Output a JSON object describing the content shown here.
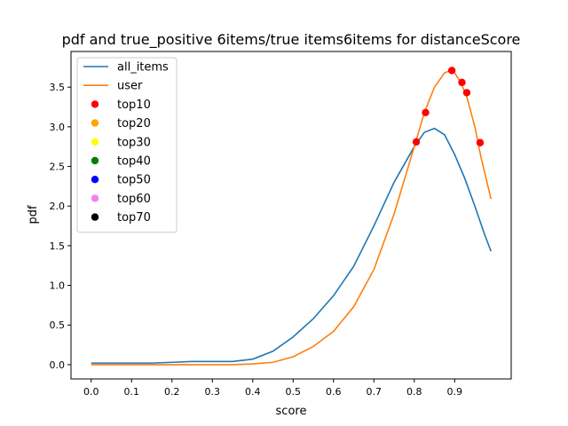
{
  "chart_data": {
    "type": "line",
    "title": "pdf and true_positive 6items/true items6items for distanceScore",
    "xlabel": "score",
    "ylabel": "pdf",
    "xlim": [
      -0.05,
      1.04
    ],
    "ylim": [
      -0.18,
      3.95
    ],
    "xticks": [
      0.0,
      0.1,
      0.2,
      0.3,
      0.4,
      0.5,
      0.6,
      0.7,
      0.8,
      0.9
    ],
    "xtick_labels": [
      "0.0",
      "0.1",
      "0.2",
      "0.3",
      "0.4",
      "0.5",
      "0.6",
      "0.7",
      "0.8",
      "0.9"
    ],
    "yticks": [
      0.0,
      0.5,
      1.0,
      1.5,
      2.0,
      2.5,
      3.0,
      3.5
    ],
    "ytick_labels": [
      "0.0",
      "0.5",
      "1.0",
      "1.5",
      "2.0",
      "2.5",
      "3.0",
      "3.5"
    ],
    "grid": false,
    "legend_position": "top-left",
    "series": [
      {
        "name": "all_items",
        "color": "#1f77b4",
        "x": [
          0.0,
          0.05,
          0.1,
          0.15,
          0.2,
          0.25,
          0.3,
          0.35,
          0.4,
          0.45,
          0.5,
          0.55,
          0.6,
          0.65,
          0.7,
          0.75,
          0.8,
          0.825,
          0.85,
          0.875,
          0.9,
          0.925,
          0.95,
          0.975,
          0.99
        ],
        "y": [
          0.02,
          0.02,
          0.02,
          0.02,
          0.03,
          0.04,
          0.04,
          0.04,
          0.07,
          0.17,
          0.35,
          0.58,
          0.87,
          1.24,
          1.75,
          2.3,
          2.75,
          2.93,
          2.98,
          2.9,
          2.65,
          2.35,
          2.0,
          1.63,
          1.43
        ]
      },
      {
        "name": "user",
        "color": "#ff7f0e",
        "x": [
          0.0,
          0.1,
          0.2,
          0.3,
          0.35,
          0.4,
          0.45,
          0.5,
          0.55,
          0.6,
          0.65,
          0.7,
          0.75,
          0.8,
          0.825,
          0.85,
          0.875,
          0.89,
          0.9,
          0.915,
          0.93,
          0.95,
          0.965,
          0.99
        ],
        "y": [
          0.0,
          0.0,
          0.0,
          0.0,
          0.0,
          0.01,
          0.03,
          0.1,
          0.23,
          0.42,
          0.73,
          1.2,
          1.9,
          2.75,
          3.18,
          3.5,
          3.68,
          3.71,
          3.68,
          3.56,
          3.38,
          3.0,
          2.62,
          2.09
        ]
      }
    ],
    "scatter_series": [
      {
        "name": "top10",
        "color": "#ff0000",
        "x": [
          0.805,
          0.828,
          0.893,
          0.918,
          0.93,
          0.963
        ],
        "y": [
          2.81,
          3.18,
          3.71,
          3.56,
          3.43,
          2.8
        ]
      },
      {
        "name": "top20",
        "color": "#ffa500",
        "x": [],
        "y": []
      },
      {
        "name": "top30",
        "color": "#ffff00",
        "x": [],
        "y": []
      },
      {
        "name": "top40",
        "color": "#008000",
        "x": [],
        "y": []
      },
      {
        "name": "top50",
        "color": "#0000ff",
        "x": [],
        "y": []
      },
      {
        "name": "top60",
        "color": "#ee82ee",
        "x": [],
        "y": []
      },
      {
        "name": "top70",
        "color": "#000000",
        "x": [],
        "y": []
      }
    ]
  }
}
